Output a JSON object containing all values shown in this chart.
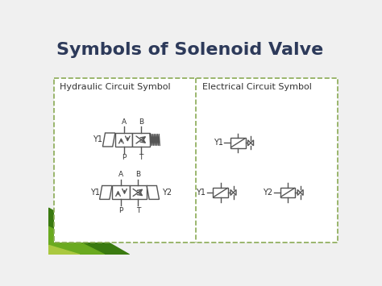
{
  "title": "Symbols of Solenoid Valve",
  "title_color": "#2d3a5a",
  "title_fontsize": 16,
  "bg_color": "#f0f0f0",
  "box_color": "#8aaa55",
  "symbol_color": "#555555",
  "text_color": "#333333",
  "left_panel_title": "Hydraulic Circuit Symbol",
  "right_panel_title": "Electrical Circuit Symbol",
  "green_dark": "#3a7a10",
  "green_mid": "#6aaa20",
  "green_light": "#aac840"
}
